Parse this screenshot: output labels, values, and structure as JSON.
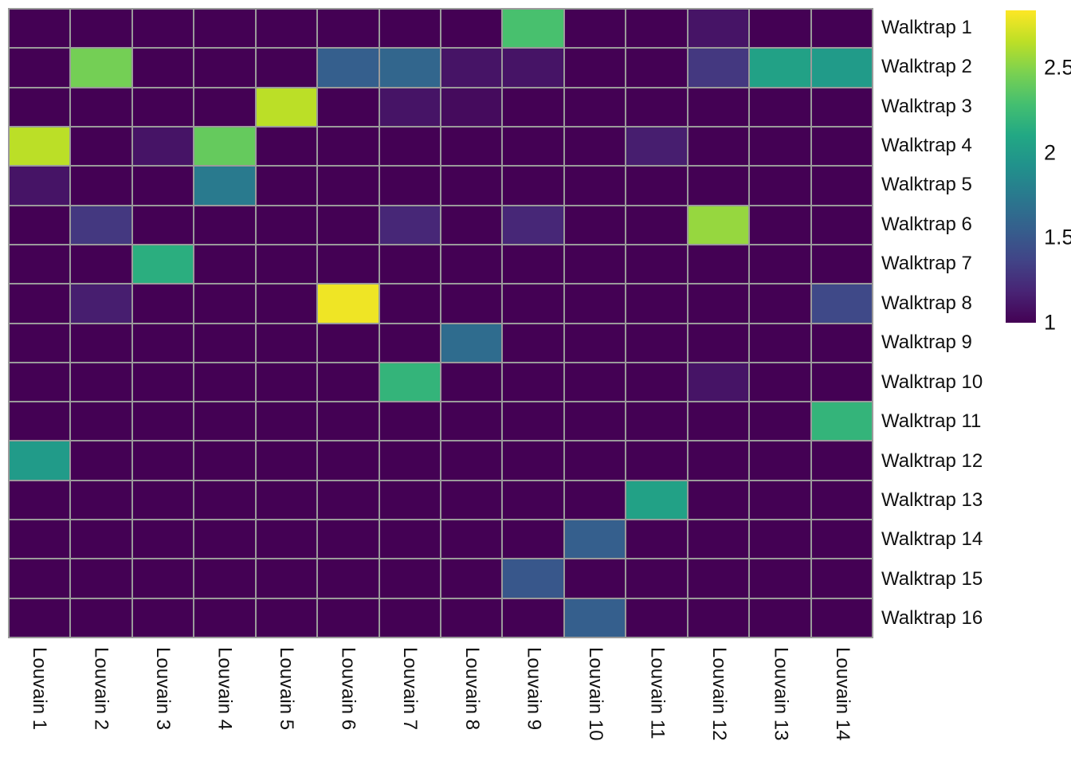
{
  "figure": {
    "background": "#ffffff",
    "grid_line_color": "#9b9b9b",
    "label_color": "#111111"
  },
  "chart_data": {
    "type": "heatmap",
    "title": "",
    "xlabel": "",
    "ylabel": "",
    "grid": true,
    "legend_position": "right-colorbar",
    "rows": [
      "Walktrap 1",
      "Walktrap 2",
      "Walktrap 3",
      "Walktrap 4",
      "Walktrap 5",
      "Walktrap 6",
      "Walktrap 7",
      "Walktrap 8",
      "Walktrap 9",
      "Walktrap 10",
      "Walktrap 11",
      "Walktrap 12",
      "Walktrap 13",
      "Walktrap 14",
      "Walktrap 15",
      "Walktrap 16"
    ],
    "columns": [
      "Louvain 1",
      "Louvain 2",
      "Louvain 3",
      "Louvain 4",
      "Louvain 5",
      "Louvain 6",
      "Louvain 7",
      "Louvain 8",
      "Louvain 9",
      "Louvain 10",
      "Louvain 11",
      "Louvain 12",
      "Louvain 13",
      "Louvain 14"
    ],
    "matrix": [
      [
        1,
        1,
        1,
        1,
        1,
        1,
        1,
        1,
        2.3,
        1,
        1,
        1.1,
        1,
        1
      ],
      [
        1,
        2.45,
        1,
        1,
        1,
        1.55,
        1.6,
        1.1,
        1.1,
        1,
        1,
        1.3,
        2.05,
        2.0
      ],
      [
        1,
        1,
        1,
        1,
        2.65,
        1,
        1.1,
        1.05,
        1,
        1,
        1,
        1,
        1,
        1
      ],
      [
        2.65,
        1,
        1.1,
        2.4,
        1,
        1,
        1,
        1,
        1,
        1,
        1.15,
        1,
        1,
        1
      ],
      [
        1.1,
        1,
        1,
        1.75,
        1,
        1,
        1,
        1,
        1,
        1,
        1,
        1,
        1,
        1
      ],
      [
        1,
        1.3,
        1,
        1,
        1,
        1,
        1.2,
        1,
        1.2,
        1,
        1,
        2.55,
        1,
        1
      ],
      [
        1,
        1,
        2.15,
        1,
        1,
        1,
        1,
        1,
        1,
        1,
        1,
        1,
        1,
        1
      ],
      [
        1,
        1.15,
        1,
        1,
        1,
        2.8,
        1,
        1,
        1,
        1,
        1,
        1,
        1,
        1.4
      ],
      [
        1,
        1,
        1,
        1,
        1,
        1,
        1,
        1.65,
        1,
        1,
        1,
        1,
        1,
        1
      ],
      [
        1,
        1,
        1,
        1,
        1,
        1,
        2.2,
        1,
        1,
        1,
        1,
        1.1,
        1,
        1
      ],
      [
        1,
        1,
        1,
        1,
        1,
        1,
        1,
        1,
        1,
        1,
        1,
        1,
        1,
        2.2
      ],
      [
        2.0,
        1,
        1,
        1,
        1,
        1,
        1,
        1,
        1,
        1,
        1,
        1,
        1,
        1
      ],
      [
        1,
        1,
        1,
        1,
        1,
        1,
        1,
        1,
        1,
        1,
        2.05,
        1,
        1,
        1
      ],
      [
        1,
        1,
        1,
        1,
        1,
        1,
        1,
        1,
        1,
        1.55,
        1,
        1,
        1,
        1
      ],
      [
        1,
        1,
        1,
        1,
        1,
        1,
        1,
        1,
        1.5,
        1,
        1,
        1,
        1,
        1
      ],
      [
        1,
        1,
        1,
        1,
        1,
        1,
        1,
        1,
        1,
        1.55,
        1,
        1,
        1,
        1
      ]
    ],
    "colorscale": {
      "name": "viridis",
      "vmin": 1.0,
      "vmax": 2.84,
      "stops": [
        "#440154",
        "#482475",
        "#414487",
        "#355f8d",
        "#2a788e",
        "#21918c",
        "#22a884",
        "#44bf70",
        "#7ad151",
        "#bddf26",
        "#fde725"
      ]
    },
    "colorbar": {
      "ticks": [
        {
          "value": 2.5,
          "label": "2.5"
        },
        {
          "value": 2.0,
          "label": "2"
        },
        {
          "value": 1.5,
          "label": "1.5"
        },
        {
          "value": 1.0,
          "label": "1"
        }
      ]
    }
  }
}
